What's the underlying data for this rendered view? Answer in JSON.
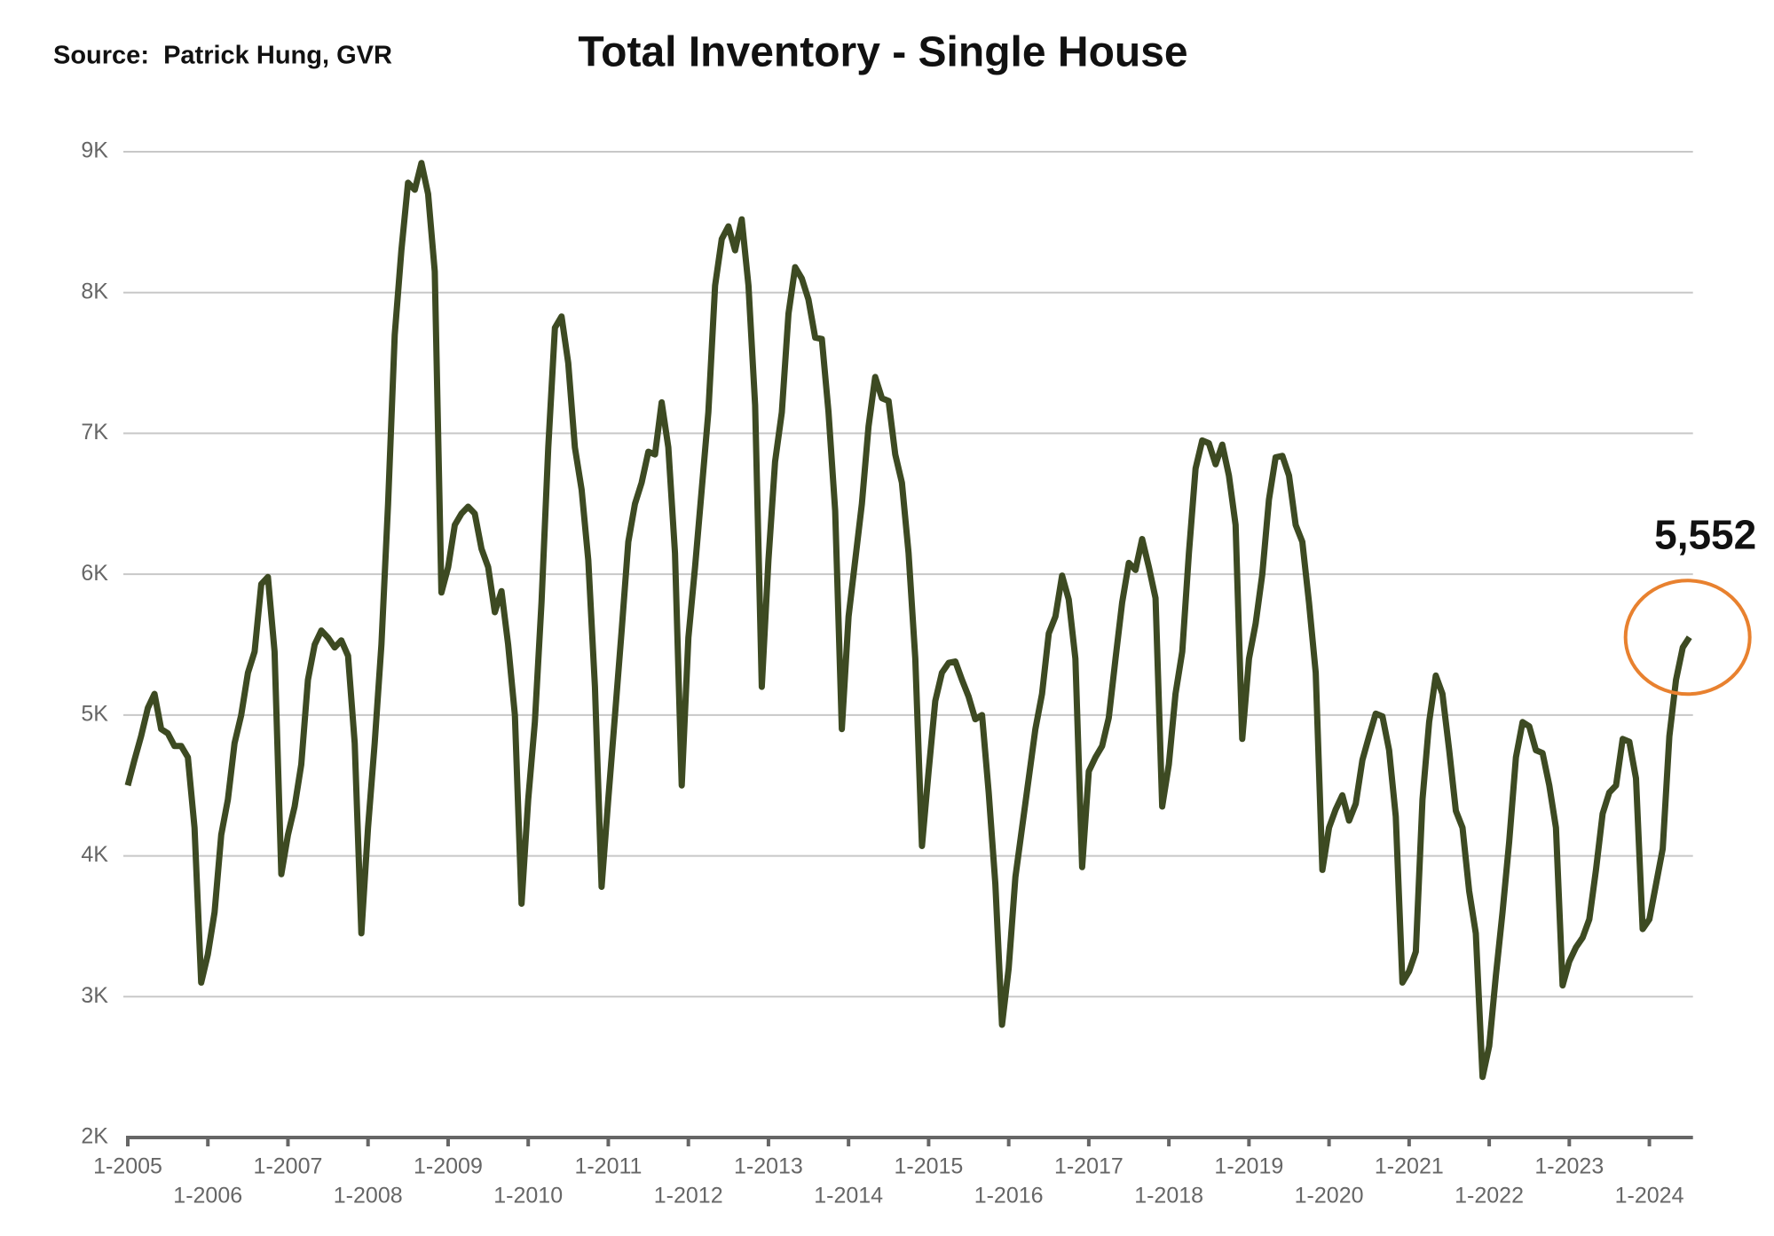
{
  "chart_data": {
    "type": "line",
    "title": "Total Inventory - Single House",
    "source": "Source:  Patrick Hung, GVR",
    "annotation": "5,552",
    "categories": [
      "1-2005",
      null,
      null,
      null,
      null,
      null,
      null,
      null,
      null,
      null,
      null,
      null,
      "1-2006",
      null,
      null,
      null,
      null,
      null,
      null,
      null,
      null,
      null,
      null,
      null,
      "1-2007",
      null,
      null,
      null,
      null,
      null,
      null,
      null,
      null,
      null,
      null,
      null,
      "1-2008",
      null,
      null,
      null,
      null,
      null,
      null,
      null,
      null,
      null,
      null,
      null,
      "1-2009",
      null,
      null,
      null,
      null,
      null,
      null,
      null,
      null,
      null,
      null,
      null,
      "1-2010",
      null,
      null,
      null,
      null,
      null,
      null,
      null,
      null,
      null,
      null,
      null,
      "1-2011",
      null,
      null,
      null,
      null,
      null,
      null,
      null,
      null,
      null,
      null,
      null,
      "1-2012",
      null,
      null,
      null,
      null,
      null,
      null,
      null,
      null,
      null,
      null,
      null,
      "1-2013",
      null,
      null,
      null,
      null,
      null,
      null,
      null,
      null,
      null,
      null,
      null,
      "1-2014",
      null,
      null,
      null,
      null,
      null,
      null,
      null,
      null,
      null,
      null,
      null,
      "1-2015",
      null,
      null,
      null,
      null,
      null,
      null,
      null,
      null,
      null,
      null,
      null,
      "1-2016",
      null,
      null,
      null,
      null,
      null,
      null,
      null,
      null,
      null,
      null,
      null,
      "1-2017",
      null,
      null,
      null,
      null,
      null,
      null,
      null,
      null,
      null,
      null,
      null,
      "1-2018",
      null,
      null,
      null,
      null,
      null,
      null,
      null,
      null,
      null,
      null,
      null,
      "1-2019",
      null,
      null,
      null,
      null,
      null,
      null,
      null,
      null,
      null,
      null,
      null,
      "1-2020",
      null,
      null,
      null,
      null,
      null,
      null,
      null,
      null,
      null,
      null,
      null,
      "1-2021",
      null,
      null,
      null,
      null,
      null,
      null,
      null,
      null,
      null,
      null,
      null,
      "1-2022",
      null,
      null,
      null,
      null,
      null,
      null,
      null,
      null,
      null,
      null,
      null,
      "1-2023",
      null,
      null,
      null,
      null,
      null,
      null,
      null,
      null,
      null,
      null,
      null,
      "1-2024",
      null,
      null,
      null,
      null,
      null,
      null
    ],
    "series": [
      {
        "name": "Total Inventory",
        "color": "#3d4a22",
        "values": [
          4500,
          4680,
          4850,
          5050,
          5150,
          4900,
          4870,
          4780,
          4780,
          4700,
          4200,
          3100,
          3300,
          3600,
          4150,
          4400,
          4800,
          5000,
          5300,
          5450,
          5930,
          5980,
          5450,
          3870,
          4150,
          4350,
          4650,
          5250,
          5500,
          5600,
          5550,
          5480,
          5530,
          5420,
          4800,
          3450,
          4200,
          4800,
          5500,
          6500,
          7700,
          8300,
          8780,
          8730,
          8920,
          8700,
          8150,
          5870,
          6050,
          6350,
          6430,
          6480,
          6430,
          6180,
          6050,
          5730,
          5880,
          5500,
          5000,
          3660,
          4400,
          4950,
          5800,
          6900,
          7750,
          7830,
          7500,
          6900,
          6600,
          6100,
          5200,
          3780,
          4400,
          5000,
          5600,
          6230,
          6500,
          6650,
          6870,
          6850,
          7220,
          6900,
          6150,
          4500,
          5550,
          6050,
          6600,
          7150,
          8050,
          8380,
          8470,
          8300,
          8520,
          8050,
          7200,
          5200,
          6100,
          6800,
          7150,
          7850,
          8180,
          8100,
          7950,
          7680,
          7670,
          7150,
          6450,
          4900,
          5700,
          6100,
          6500,
          7050,
          7400,
          7250,
          7230,
          6850,
          6650,
          6150,
          5400,
          4070,
          4600,
          5100,
          5300,
          5370,
          5380,
          5250,
          5130,
          4970,
          5000,
          4450,
          3800,
          2800,
          3200,
          3850,
          4200,
          4550,
          4900,
          5150,
          5580,
          5700,
          5990,
          5820,
          5400,
          3920,
          4600,
          4700,
          4780,
          4980,
          5400,
          5800,
          6080,
          6030,
          6250,
          6050,
          5830,
          4350,
          4650,
          5150,
          5450,
          6150,
          6750,
          6950,
          6930,
          6780,
          6920,
          6700,
          6350,
          4830,
          5400,
          5650,
          6000,
          6530,
          6830,
          6840,
          6700,
          6350,
          6230,
          5800,
          5300,
          3900,
          4200,
          4330,
          4430,
          4250,
          4370,
          4680,
          4850,
          5010,
          4990,
          4750,
          4280,
          3100,
          3180,
          3320,
          4400,
          4950,
          5280,
          5150,
          4750,
          4320,
          4200,
          3750,
          3450,
          2430,
          2650,
          3150,
          3600,
          4100,
          4700,
          4950,
          4920,
          4750,
          4730,
          4500,
          4200,
          3080,
          3250,
          3350,
          3420,
          3550,
          3900,
          4300,
          4450,
          4500,
          4830,
          4810,
          4550,
          3480,
          3550,
          3800,
          4050,
          4850,
          5250,
          5480,
          5552
        ]
      }
    ],
    "ylim": [
      2000,
      9000
    ],
    "yticks": [
      {
        "value": 2000,
        "label": "2K"
      },
      {
        "value": 3000,
        "label": "3K"
      },
      {
        "value": 4000,
        "label": "4K"
      },
      {
        "value": 5000,
        "label": "5K"
      },
      {
        "value": 6000,
        "label": "6K"
      },
      {
        "value": 7000,
        "label": "7K"
      },
      {
        "value": 8000,
        "label": "8K"
      },
      {
        "value": 9000,
        "label": "9K"
      }
    ],
    "grid": true,
    "highlight_color": "#e8812f"
  }
}
